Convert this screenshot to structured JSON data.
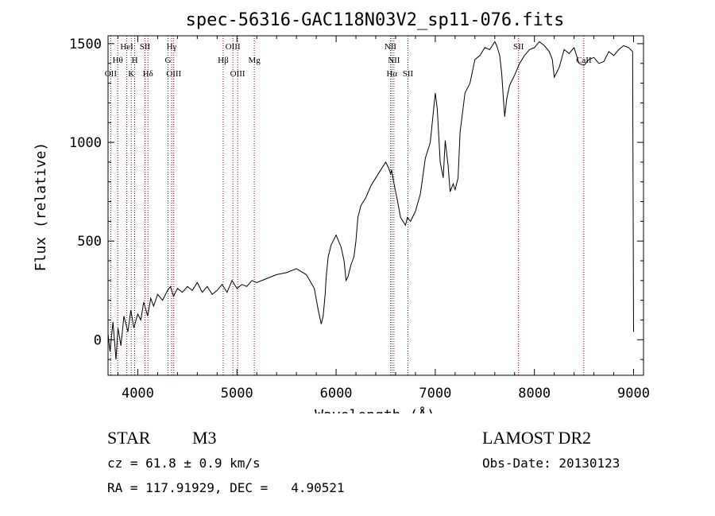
{
  "chart_data": {
    "type": "line",
    "title": "spec-56316-GAC118N03V2_sp11-076.fits",
    "xlabel": "Wavelength (Å)",
    "ylabel": "Flux (relative)",
    "xlim": [
      3700,
      9100
    ],
    "ylim": [
      -180,
      1540
    ],
    "xticks": [
      4000,
      5000,
      6000,
      7000,
      8000,
      9000
    ],
    "yticks": [
      0,
      500,
      1000,
      1500
    ],
    "series": [
      {
        "name": "flux",
        "x": [
          3700,
          3720,
          3750,
          3780,
          3800,
          3830,
          3860,
          3900,
          3930,
          3960,
          4000,
          4030,
          4060,
          4100,
          4130,
          4160,
          4200,
          4250,
          4300,
          4330,
          4360,
          4400,
          4450,
          4500,
          4550,
          4600,
          4650,
          4700,
          4750,
          4800,
          4850,
          4900,
          4950,
          5000,
          5050,
          5100,
          5150,
          5200,
          5300,
          5400,
          5500,
          5600,
          5700,
          5780,
          5820,
          5850,
          5870,
          5890,
          5900,
          5920,
          5950,
          6000,
          6050,
          6080,
          6100,
          6120,
          6150,
          6180,
          6200,
          6220,
          6250,
          6300,
          6350,
          6400,
          6450,
          6500,
          6530,
          6550,
          6560,
          6580,
          6620,
          6650,
          6700,
          6720,
          6750,
          6800,
          6850,
          6900,
          6950,
          7000,
          7020,
          7050,
          7080,
          7100,
          7130,
          7150,
          7180,
          7200,
          7230,
          7250,
          7300,
          7350,
          7400,
          7450,
          7500,
          7550,
          7600,
          7620,
          7650,
          7670,
          7690,
          7700,
          7720,
          7750,
          7800,
          7850,
          7900,
          7950,
          8000,
          8050,
          8100,
          8150,
          8180,
          8200,
          8250,
          8300,
          8350,
          8400,
          8450,
          8500,
          8550,
          8600,
          8650,
          8700,
          8750,
          8800,
          8850,
          8900,
          8950,
          8990,
          9000
        ],
        "values": [
          30,
          -60,
          90,
          -100,
          60,
          -30,
          120,
          40,
          150,
          60,
          130,
          100,
          190,
          120,
          210,
          170,
          230,
          200,
          250,
          270,
          220,
          260,
          240,
          270,
          250,
          290,
          240,
          270,
          230,
          250,
          280,
          240,
          300,
          260,
          280,
          270,
          300,
          290,
          310,
          330,
          340,
          360,
          330,
          260,
          150,
          80,
          120,
          230,
          320,
          420,
          480,
          530,
          470,
          400,
          300,
          320,
          380,
          420,
          500,
          620,
          680,
          720,
          780,
          820,
          860,
          900,
          870,
          840,
          860,
          800,
          700,
          620,
          580,
          620,
          600,
          650,
          740,
          920,
          1000,
          1250,
          1170,
          900,
          820,
          1010,
          880,
          750,
          790,
          760,
          820,
          1050,
          1250,
          1300,
          1420,
          1440,
          1480,
          1470,
          1510,
          1490,
          1440,
          1350,
          1200,
          1130,
          1220,
          1290,
          1340,
          1400,
          1440,
          1470,
          1480,
          1510,
          1490,
          1460,
          1420,
          1330,
          1380,
          1470,
          1450,
          1480,
          1400,
          1390,
          1420,
          1430,
          1400,
          1410,
          1460,
          1440,
          1470,
          1490,
          1480,
          1460,
          40
        ]
      }
    ],
    "lines": [
      {
        "name": "OII",
        "x": 3727,
        "label_row": 3
      },
      {
        "name": "Hθ",
        "x": 3798,
        "label_row": 2
      },
      {
        "name": "HeI",
        "x": 3889,
        "label_row": 1
      },
      {
        "name": "K",
        "x": 3934,
        "label_row": 3
      },
      {
        "name": "H",
        "x": 3969,
        "label_row": 2
      },
      {
        "name": "SII",
        "x": 4072,
        "label_row": 1
      },
      {
        "name": "Hδ",
        "x": 4102,
        "label_row": 3
      },
      {
        "name": "G",
        "x": 4305,
        "label_row": 2
      },
      {
        "name": "Hγ",
        "x": 4341,
        "label_row": 1
      },
      {
        "name": "OIII",
        "x": 4363,
        "label_row": 3
      },
      {
        "name": "Hβ",
        "x": 4861,
        "label_row": 2
      },
      {
        "name": "OIII",
        "x": 4959,
        "label_row": 1
      },
      {
        "name": "OIII",
        "x": 5007,
        "label_row": 3
      },
      {
        "name": "Mg",
        "x": 5175,
        "label_row": 2
      },
      {
        "name": "NII",
        "x": 6548,
        "label_row": 1
      },
      {
        "name": "NII",
        "x": 6583,
        "label_row": 2
      },
      {
        "name": "Hα",
        "x": 6563,
        "label_row": 3
      },
      {
        "name": "SII",
        "x": 6724,
        "label_row": 3
      },
      {
        "name": "SII",
        "x": 7840,
        "label_row": 1
      },
      {
        "name": "CaII",
        "x": 8498,
        "label_row": 2
      }
    ]
  },
  "info": {
    "class": "STAR",
    "subclass": "M3",
    "cz": "cz = 61.8 ± 0.9 km/s",
    "radec": "RA = 117.91929, DEC =   4.90521",
    "survey": "LAMOST DR2",
    "obsdate": "Obs-Date: 20130123"
  },
  "colors": {
    "axes": "#000000",
    "spectrum": "#000000",
    "line_markers": "#8b0000"
  }
}
